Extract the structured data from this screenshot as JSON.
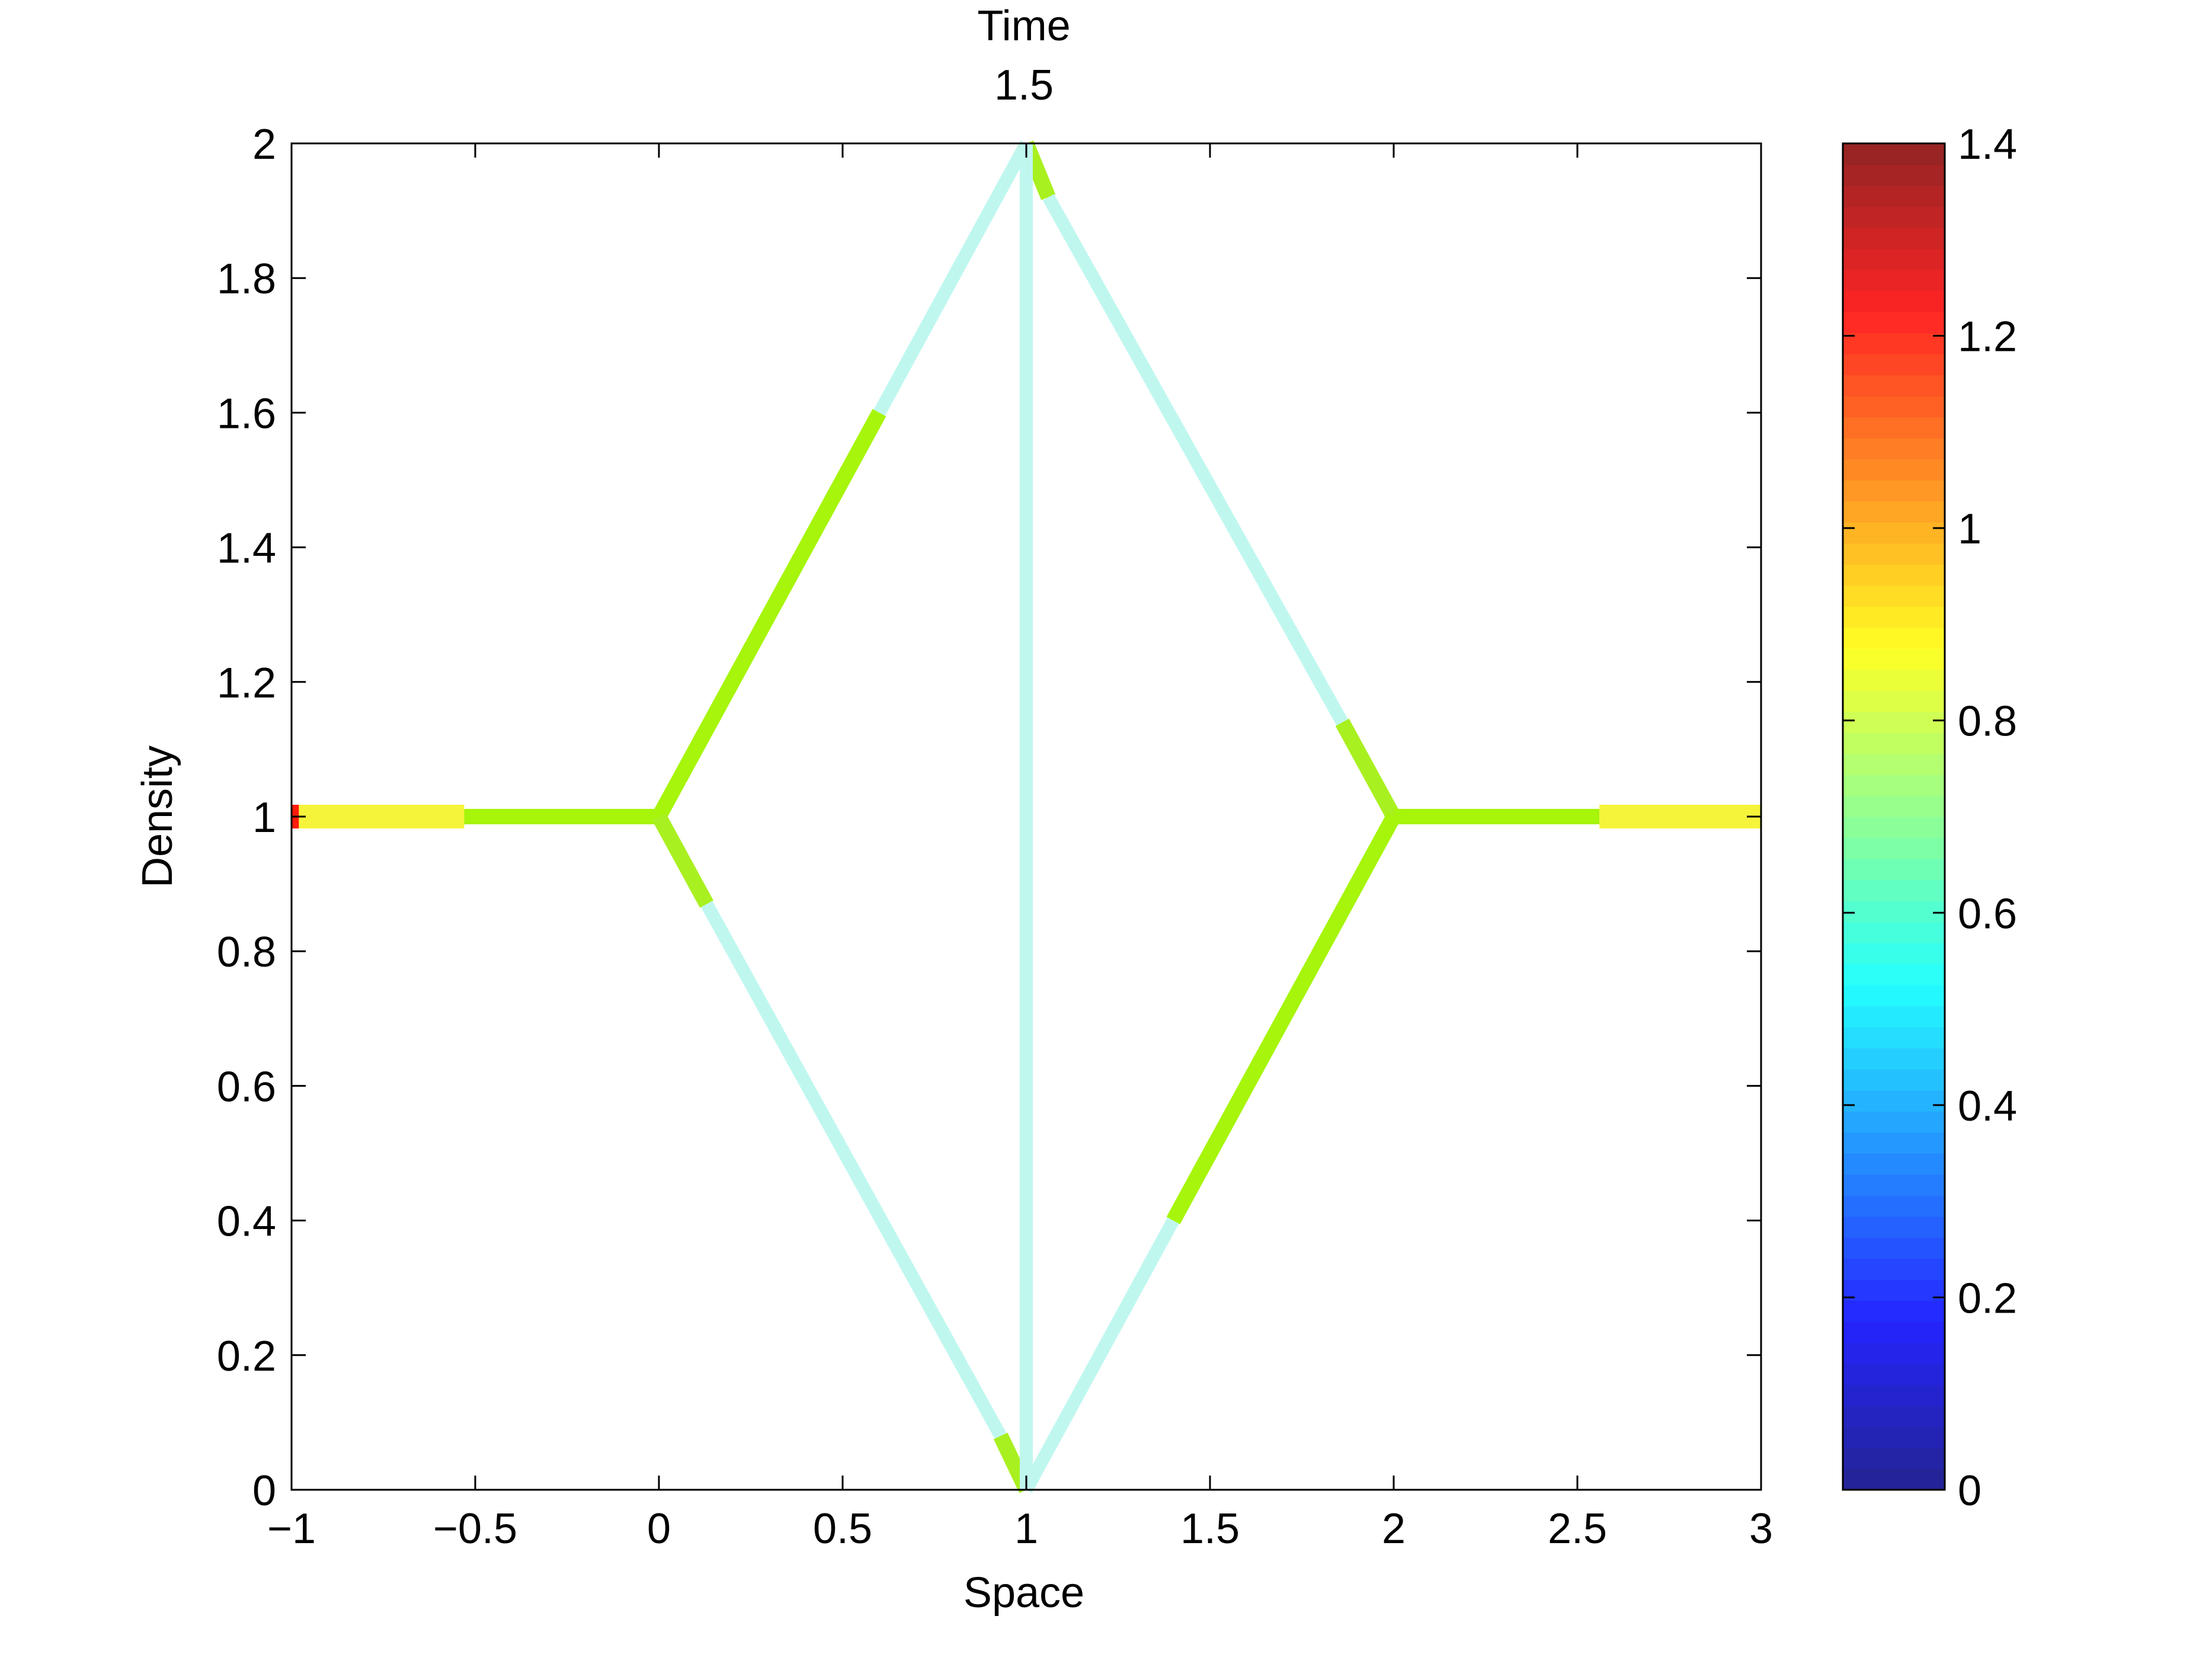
{
  "chart_data": {
    "type": "line",
    "title": [
      "Time",
      "1.5"
    ],
    "xlabel": "Space",
    "ylabel": "Density",
    "xlim": [
      -1,
      3
    ],
    "ylim": [
      0,
      2
    ],
    "grid": false,
    "xticks": [
      -1,
      -0.5,
      0,
      0.5,
      1,
      1.5,
      2,
      2.5,
      3
    ],
    "xtick_labels": [
      "−1",
      "−0.5",
      "0",
      "0.5",
      "1",
      "1.5",
      "2",
      "2.5",
      "3"
    ],
    "yticks": [
      0,
      0.2,
      0.4,
      0.6,
      0.8,
      1,
      1.2,
      1.4,
      1.6,
      1.8,
      2
    ],
    "ytick_labels": [
      "0",
      "0.2",
      "0.4",
      "0.6",
      "0.8",
      "1",
      "1.2",
      "1.4",
      "1.6",
      "1.8",
      "2"
    ],
    "segments": [
      {
        "x": [
          -1,
          -0.98
        ],
        "y": [
          1,
          1
        ],
        "value": 1.25
      },
      {
        "x": [
          -0.98,
          -0.53
        ],
        "y": [
          1,
          1
        ],
        "value": 0.88
      },
      {
        "x": [
          -0.53,
          0
        ],
        "y": [
          1,
          1
        ],
        "value": 0.75
      },
      {
        "x": [
          0,
          0.6
        ],
        "y": [
          1,
          1.6
        ],
        "value": 0.75
      },
      {
        "x": [
          0.6,
          1
        ],
        "y": [
          1.6,
          2
        ],
        "value": 0.4
      },
      {
        "x": [
          1,
          1.06
        ],
        "y": [
          2,
          1.92
        ],
        "value": 0.7
      },
      {
        "x": [
          1.06,
          1.86
        ],
        "y": [
          1.92,
          1.14
        ],
        "value": 0.4
      },
      {
        "x": [
          1.86,
          2
        ],
        "y": [
          1.14,
          1
        ],
        "value": 0.7
      },
      {
        "x": [
          0,
          0.13
        ],
        "y": [
          1,
          0.87
        ],
        "value": 0.7
      },
      {
        "x": [
          0.13,
          0.93
        ],
        "y": [
          0.87,
          0.08
        ],
        "value": 0.4
      },
      {
        "x": [
          0.93,
          1
        ],
        "y": [
          0.08,
          0
        ],
        "value": 0.7
      },
      {
        "x": [
          1,
          1
        ],
        "y": [
          0,
          2
        ],
        "value": 0.4
      },
      {
        "x": [
          1,
          1.4
        ],
        "y": [
          0,
          0.4
        ],
        "value": 0.4
      },
      {
        "x": [
          1.4,
          2
        ],
        "y": [
          0.4,
          1
        ],
        "value": 0.75
      },
      {
        "x": [
          2,
          2.56
        ],
        "y": [
          1,
          1
        ],
        "value": 0.75
      },
      {
        "x": [
          2.56,
          3
        ],
        "y": [
          1,
          1
        ],
        "value": 0.88
      }
    ],
    "colorbar": {
      "clim": [
        0,
        1.4
      ],
      "ticks": [
        0,
        0.2,
        0.4,
        0.6,
        0.8,
        1,
        1.2,
        1.4
      ],
      "tick_labels": [
        "0",
        "0.2",
        "0.4",
        "0.6",
        "0.8",
        "1",
        "1.2",
        "1.4"
      ],
      "colormap": "jet-like",
      "levels": 64
    },
    "colors": {
      "0.4": "#bff7ef",
      "0.7": "#a9f020",
      "0.75": "#a6f50a",
      "0.88": "#f6f43a",
      "1.25": "#ff1a0a"
    }
  }
}
